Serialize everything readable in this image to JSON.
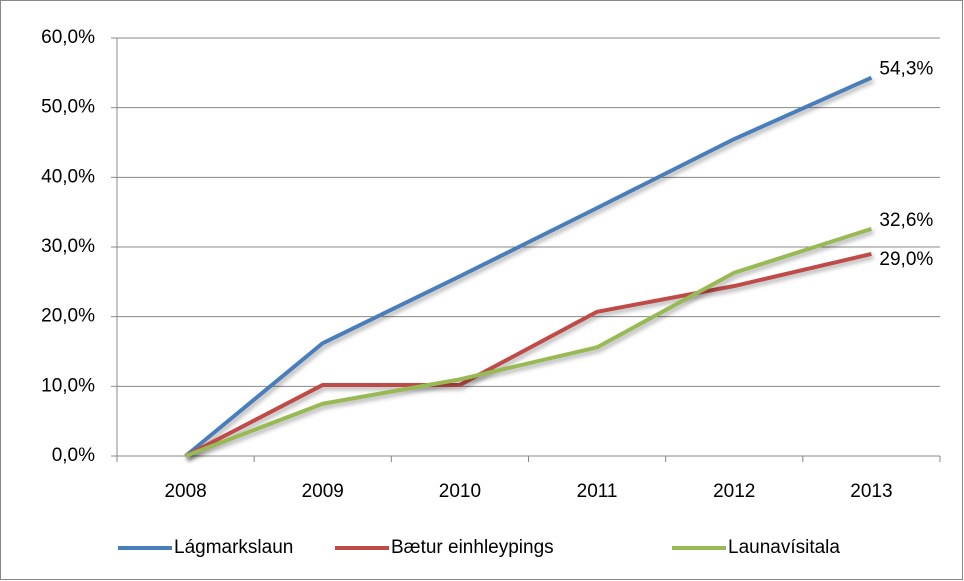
{
  "chart_data": {
    "type": "line",
    "categories": [
      "2008",
      "2009",
      "2010",
      "2011",
      "2012",
      "2013"
    ],
    "series": [
      {
        "name": "Lágmarkslaun",
        "color": "#4a7ebb",
        "values": [
          0,
          16.2,
          25.8,
          35.6,
          45.5,
          54.3
        ],
        "value_labels": [
          null,
          null,
          null,
          null,
          null,
          "54,3%"
        ]
      },
      {
        "name": "Bætur einhleypings",
        "color": "#be4b48",
        "values": [
          0,
          10.2,
          10.2,
          20.7,
          24.4,
          29.0
        ],
        "value_labels": [
          null,
          null,
          null,
          null,
          null,
          "29,0%"
        ]
      },
      {
        "name": "Launavísitala",
        "color": "#98b954",
        "values": [
          0,
          7.5,
          11.0,
          15.6,
          26.3,
          32.6
        ],
        "value_labels": [
          null,
          null,
          null,
          null,
          null,
          "32,6%"
        ]
      }
    ],
    "ylim": [
      0,
      60
    ],
    "yticks": [
      {
        "value": 0,
        "label": "0,0%"
      },
      {
        "value": 10,
        "label": "10,0%"
      },
      {
        "value": 20,
        "label": "20,0%"
      },
      {
        "value": 30,
        "label": "30,0%"
      },
      {
        "value": 40,
        "label": "40,0%"
      },
      {
        "value": 50,
        "label": "50,0%"
      },
      {
        "value": 60,
        "label": "60,0%"
      }
    ],
    "grid": true,
    "legend": "bottom"
  }
}
